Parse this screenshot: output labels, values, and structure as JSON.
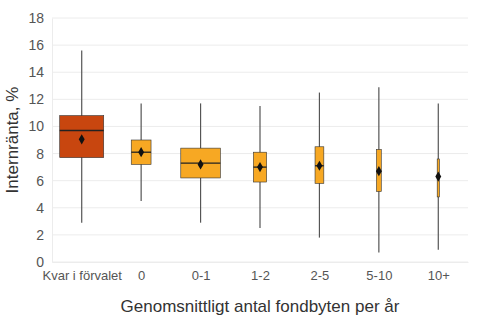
{
  "chart_data": {
    "type": "box",
    "x_label": "Genomsnittligt antal fondbyten per år",
    "y_label": "Internränta, %",
    "categories": [
      "Kvar i förvalet",
      "0",
      "0-1",
      "1-2",
      "2-5",
      "5-10",
      "10+"
    ],
    "whisker_low": [
      2.9,
      4.5,
      2.9,
      2.5,
      1.8,
      0.7,
      0.9
    ],
    "q1": [
      7.7,
      7.2,
      6.2,
      5.9,
      5.8,
      5.2,
      4.8
    ],
    "median": [
      9.7,
      8.1,
      7.3,
      7.0,
      7.1,
      6.7,
      6.3
    ],
    "q3": [
      10.8,
      9.0,
      8.4,
      8.1,
      8.5,
      8.3,
      7.6
    ],
    "whisker_high": [
      15.6,
      11.7,
      11.7,
      11.5,
      12.5,
      12.9,
      11.7
    ],
    "mean": [
      9.05,
      8.1,
      7.2,
      7.0,
      7.1,
      6.7,
      6.3
    ],
    "sizes": [
      1.0,
      0.45,
      0.9,
      0.3,
      0.2,
      0.11,
      0.05
    ],
    "colors": [
      "#c8460f",
      "#f7a823",
      "#f7a823",
      "#f7a823",
      "#f7a823",
      "#f7a823",
      "#f7a823"
    ],
    "ylim": [
      0,
      18
    ],
    "yticks": [
      0,
      2,
      4,
      6,
      8,
      10,
      12,
      14,
      16,
      18
    ],
    "grid": true
  }
}
